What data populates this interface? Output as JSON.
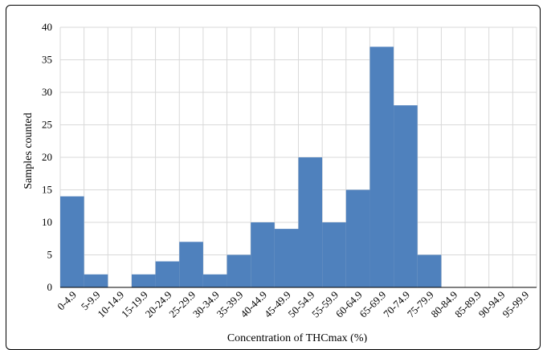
{
  "chart_data": {
    "type": "bar",
    "title": "",
    "xlabel": "Concentration of THCmax (%)",
    "ylabel": "Samples counted",
    "categories": [
      "0-4.9",
      "5-9.9",
      "10-14.9",
      "15-19.9",
      "20-24.9",
      "25-29.9",
      "30-34.9",
      "35-39.9",
      "40-44.9",
      "45-49.9",
      "50-54.9",
      "55-59.9",
      "60-64.9",
      "65-69.9",
      "70-74.9",
      "75-79.9",
      "80-84.9",
      "85-89.9",
      "90-94.9",
      "95-99.9"
    ],
    "values": [
      14,
      2,
      0,
      2,
      4,
      7,
      2,
      5,
      10,
      9,
      20,
      10,
      15,
      37,
      28,
      5,
      0,
      0,
      0,
      0
    ],
    "ylim": [
      0,
      40
    ],
    "yticks": [
      0,
      5,
      10,
      15,
      20,
      25,
      30,
      35,
      40
    ],
    "grid": true,
    "legend": "none",
    "colors": {
      "bar": "#4f81bd",
      "bar_edge": "#3b6a9e",
      "grid": "#d9d9d9",
      "axis": "#000000"
    }
  }
}
